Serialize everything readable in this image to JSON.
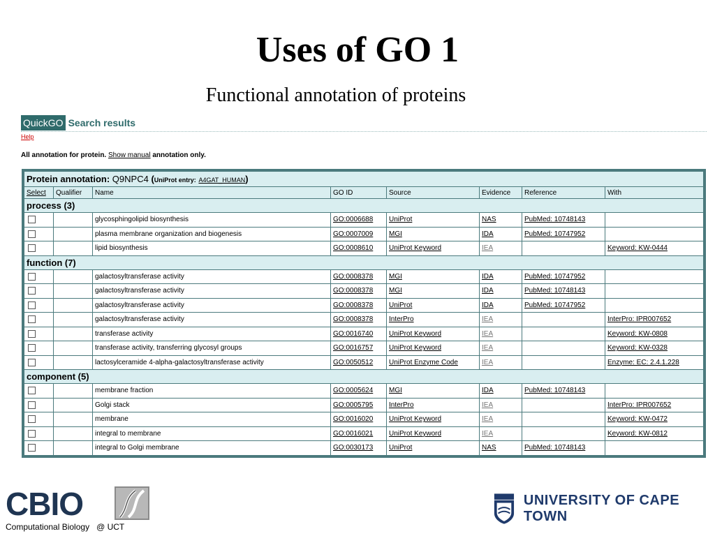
{
  "slide": {
    "title": "Uses of GO 1",
    "subtitle": "Functional annotation of proteins"
  },
  "quickgo": {
    "logo": "QuickGO",
    "heading": "Search results",
    "help": "Help",
    "annotation_prefix": "All annotation for protein.",
    "show_manual": "Show manual",
    "annotation_suffix": "annotation only."
  },
  "table": {
    "caption_label": "Protein annotation:",
    "protein_id": "Q9NPC4",
    "open_paren": "(",
    "uniprot_label": "UniProt entry:",
    "uniprot_entry": "A4GAT_HUMAN",
    "close_paren": ")",
    "columns": [
      "Select",
      "Qualifier",
      "Name",
      "GO ID",
      "Source",
      "Evidence",
      "Reference",
      "With"
    ],
    "groups": [
      {
        "label": "process (3)",
        "rows": [
          {
            "name": "glycosphingolipid biosynthesis",
            "go_id": "GO:0006688",
            "source": "UniProt",
            "evidence": "NAS",
            "reference": "PubMed: 10748143",
            "with": ""
          },
          {
            "name": "plasma membrane organization and biogenesis",
            "go_id": "GO:0007009",
            "source": "MGI",
            "evidence": "IDA",
            "reference": "PubMed: 10747952",
            "with": ""
          },
          {
            "name": "lipid biosynthesis",
            "go_id": "GO:0008610",
            "source": "UniProt Keyword",
            "evidence": "IEA",
            "reference": "",
            "with": "Keyword: KW-0444"
          }
        ]
      },
      {
        "label": "function (7)",
        "rows": [
          {
            "name": "galactosyltransferase activity",
            "go_id": "GO:0008378",
            "source": "MGI",
            "evidence": "IDA",
            "reference": "PubMed: 10747952",
            "with": ""
          },
          {
            "name": "galactosyltransferase activity",
            "go_id": "GO:0008378",
            "source": "MGI",
            "evidence": "IDA",
            "reference": "PubMed: 10748143",
            "with": ""
          },
          {
            "name": "galactosyltransferase activity",
            "go_id": "GO:0008378",
            "source": "UniProt",
            "evidence": "IDA",
            "reference": "PubMed: 10747952",
            "with": ""
          },
          {
            "name": "galactosyltransferase activity",
            "go_id": "GO:0008378",
            "source": "InterPro",
            "evidence": "IEA",
            "reference": "",
            "with": "InterPro: IPR007652"
          },
          {
            "name": "transferase activity",
            "go_id": "GO:0016740",
            "source": "UniProt Keyword",
            "evidence": "IEA",
            "reference": "",
            "with": "Keyword: KW-0808"
          },
          {
            "name": "transferase activity, transferring glycosyl groups",
            "go_id": "GO:0016757",
            "source": "UniProt Keyword",
            "evidence": "IEA",
            "reference": "",
            "with": "Keyword: KW-0328"
          },
          {
            "name": "lactosylceramide 4-alpha-galactosyltransferase activity",
            "go_id": "GO:0050512",
            "source": "UniProt Enzyme Code",
            "evidence": "IEA",
            "reference": "",
            "with": "Enzyme: EC: 2.4.1.228"
          }
        ]
      },
      {
        "label": "component (5)",
        "rows": [
          {
            "name": "membrane fraction",
            "go_id": "GO:0005624",
            "source": "MGI",
            "evidence": "IDA",
            "reference": "PubMed: 10748143",
            "with": ""
          },
          {
            "name": "Golgi stack",
            "go_id": "GO:0005795",
            "source": "InterPro",
            "evidence": "IEA",
            "reference": "",
            "with": "InterPro: IPR007652"
          },
          {
            "name": "membrane",
            "go_id": "GO:0016020",
            "source": "UniProt Keyword",
            "evidence": "IEA",
            "reference": "",
            "with": "Keyword: KW-0472"
          },
          {
            "name": "integral to membrane",
            "go_id": "GO:0016021",
            "source": "UniProt Keyword",
            "evidence": "IEA",
            "reference": "",
            "with": "Keyword: KW-0812"
          },
          {
            "name": "integral to Golgi membrane",
            "go_id": "GO:0030173",
            "source": "UniProt",
            "evidence": "NAS",
            "reference": "PubMed: 10748143",
            "with": ""
          }
        ]
      }
    ]
  },
  "footer": {
    "cbio_logo": "CBIO",
    "cbio_subtitle": "Computational Biology   @ UCT",
    "uct_name": "UNIVERSITY OF CAPE TOWN"
  },
  "colors": {
    "quickgo_teal": "#2f6b6b",
    "table_border": "#4b7a7d",
    "header_bg": "#d9eef0",
    "cbio_navy": "#1f3552",
    "uct_blue": "#1f3a6b",
    "help_red": "#cc0000"
  }
}
